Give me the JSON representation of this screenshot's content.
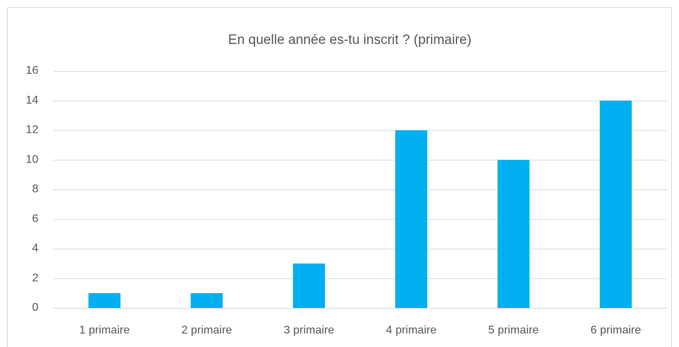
{
  "chart_data": {
    "type": "bar",
    "title": "En quelle année es-tu inscrit ? (primaire)",
    "categories": [
      "1 primaire",
      "2 primaire",
      "3 primaire",
      "4 primaire",
      "5 primaire",
      "6 primaire"
    ],
    "values": [
      1,
      1,
      3,
      12,
      10,
      14
    ],
    "color": "#00b0f0",
    "ylim": [
      0,
      16
    ],
    "yticks": [
      0,
      2,
      4,
      6,
      8,
      10,
      12,
      14,
      16
    ],
    "grid": true
  }
}
